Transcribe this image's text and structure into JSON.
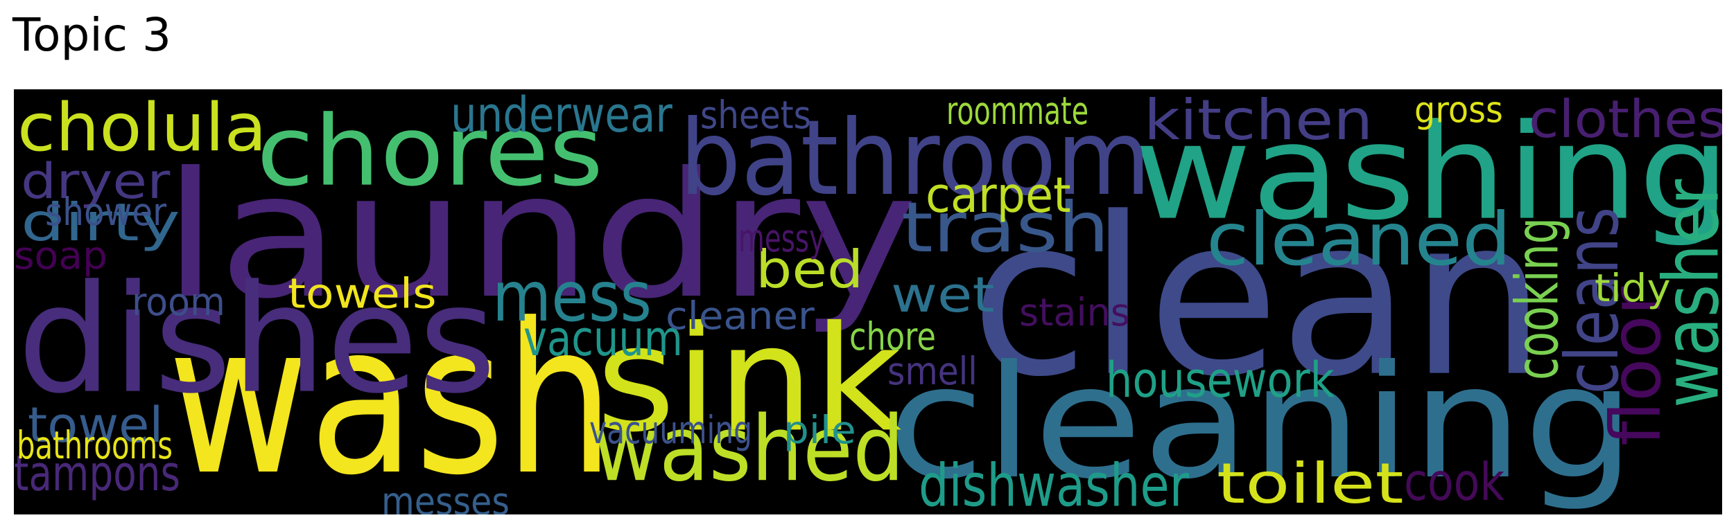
{
  "title": "Topic 3",
  "word_cloud": {
    "background": "#000000",
    "words": [
      {
        "text": "laundry",
        "color": "#482576",
        "rotated": false
      },
      {
        "text": "washing",
        "color": "#20a386",
        "rotated": false
      },
      {
        "text": "clean",
        "color": "#3e4a89",
        "rotated": false
      },
      {
        "text": "cleaning",
        "color": "#2e6f8e",
        "rotated": false
      },
      {
        "text": "wash",
        "color": "#f3e51e",
        "rotated": false
      },
      {
        "text": "dishes",
        "color": "#472d7b",
        "rotated": false
      },
      {
        "text": "sink",
        "color": "#d2e21b",
        "rotated": false
      },
      {
        "text": "bathroom",
        "color": "#404387",
        "rotated": false
      },
      {
        "text": "chores",
        "color": "#44bf70",
        "rotated": false
      },
      {
        "text": "washed",
        "color": "#bddf26",
        "rotated": false
      },
      {
        "text": "trash",
        "color": "#38588c",
        "rotated": false
      },
      {
        "text": "cleaned",
        "color": "#25858e",
        "rotated": false
      },
      {
        "text": "washer",
        "color": "#29af7f",
        "rotated": true
      },
      {
        "text": "cholula",
        "color": "#cae11f",
        "rotated": false
      },
      {
        "text": "mess",
        "color": "#26828e",
        "rotated": false
      },
      {
        "text": "kitchen",
        "color": "#433e85",
        "rotated": false
      },
      {
        "text": "clothes",
        "color": "#481f70",
        "rotated": false
      },
      {
        "text": "underwear",
        "color": "#2a768e",
        "rotated": false
      },
      {
        "text": "dryer",
        "color": "#453781",
        "rotated": false
      },
      {
        "text": "dirty",
        "color": "#31668e",
        "rotated": false
      },
      {
        "text": "carpet",
        "color": "#c0df25",
        "rotated": false
      },
      {
        "text": "bed",
        "color": "#bade28",
        "rotated": false
      },
      {
        "text": "wet",
        "color": "#2c728e",
        "rotated": false
      },
      {
        "text": "towels",
        "color": "#f1e51d",
        "rotated": false
      },
      {
        "text": "vacuum",
        "color": "#1f958b",
        "rotated": false
      },
      {
        "text": "housework",
        "color": "#1fa187",
        "rotated": false
      },
      {
        "text": "dishwasher",
        "color": "#1e9c89",
        "rotated": false
      },
      {
        "text": "toilet",
        "color": "#d5e21a",
        "rotated": false
      },
      {
        "text": "towel",
        "color": "#365c8d",
        "rotated": false
      },
      {
        "text": "tampons",
        "color": "#482878",
        "rotated": false
      },
      {
        "text": "bathrooms",
        "color": "#e7e419",
        "rotated": false
      },
      {
        "text": "soap",
        "color": "#440154",
        "rotated": false
      },
      {
        "text": "shower",
        "color": "#3b518b",
        "rotated": false
      },
      {
        "text": "sheets",
        "color": "#3f4788",
        "rotated": false
      },
      {
        "text": "roommate",
        "color": "#9dd93b",
        "rotated": false
      },
      {
        "text": "gross",
        "color": "#dde318",
        "rotated": false
      },
      {
        "text": "messy",
        "color": "#481467",
        "rotated": false
      },
      {
        "text": "cleaner",
        "color": "#3a548c",
        "rotated": false
      },
      {
        "text": "chore",
        "color": "#86d549",
        "rotated": false
      },
      {
        "text": "smell",
        "color": "#46337f",
        "rotated": false
      },
      {
        "text": "stains",
        "color": "#440f5f",
        "rotated": false
      },
      {
        "text": "cooking",
        "color": "#7ad151",
        "rotated": true
      },
      {
        "text": "cleans",
        "color": "#414487",
        "rotated": true
      },
      {
        "text": "floor",
        "color": "#46085c",
        "rotated": true
      },
      {
        "text": "tidy",
        "color": "#a0da39",
        "rotated": false
      },
      {
        "text": "cook",
        "color": "#440a57",
        "rotated": false
      },
      {
        "text": "vacuuming",
        "color": "#3b528b",
        "rotated": false
      },
      {
        "text": "pile",
        "color": "#21918c",
        "rotated": false
      },
      {
        "text": "messes",
        "color": "#355f8d",
        "rotated": false
      },
      {
        "text": "room",
        "color": "#3d4e8a",
        "rotated": false
      }
    ]
  }
}
